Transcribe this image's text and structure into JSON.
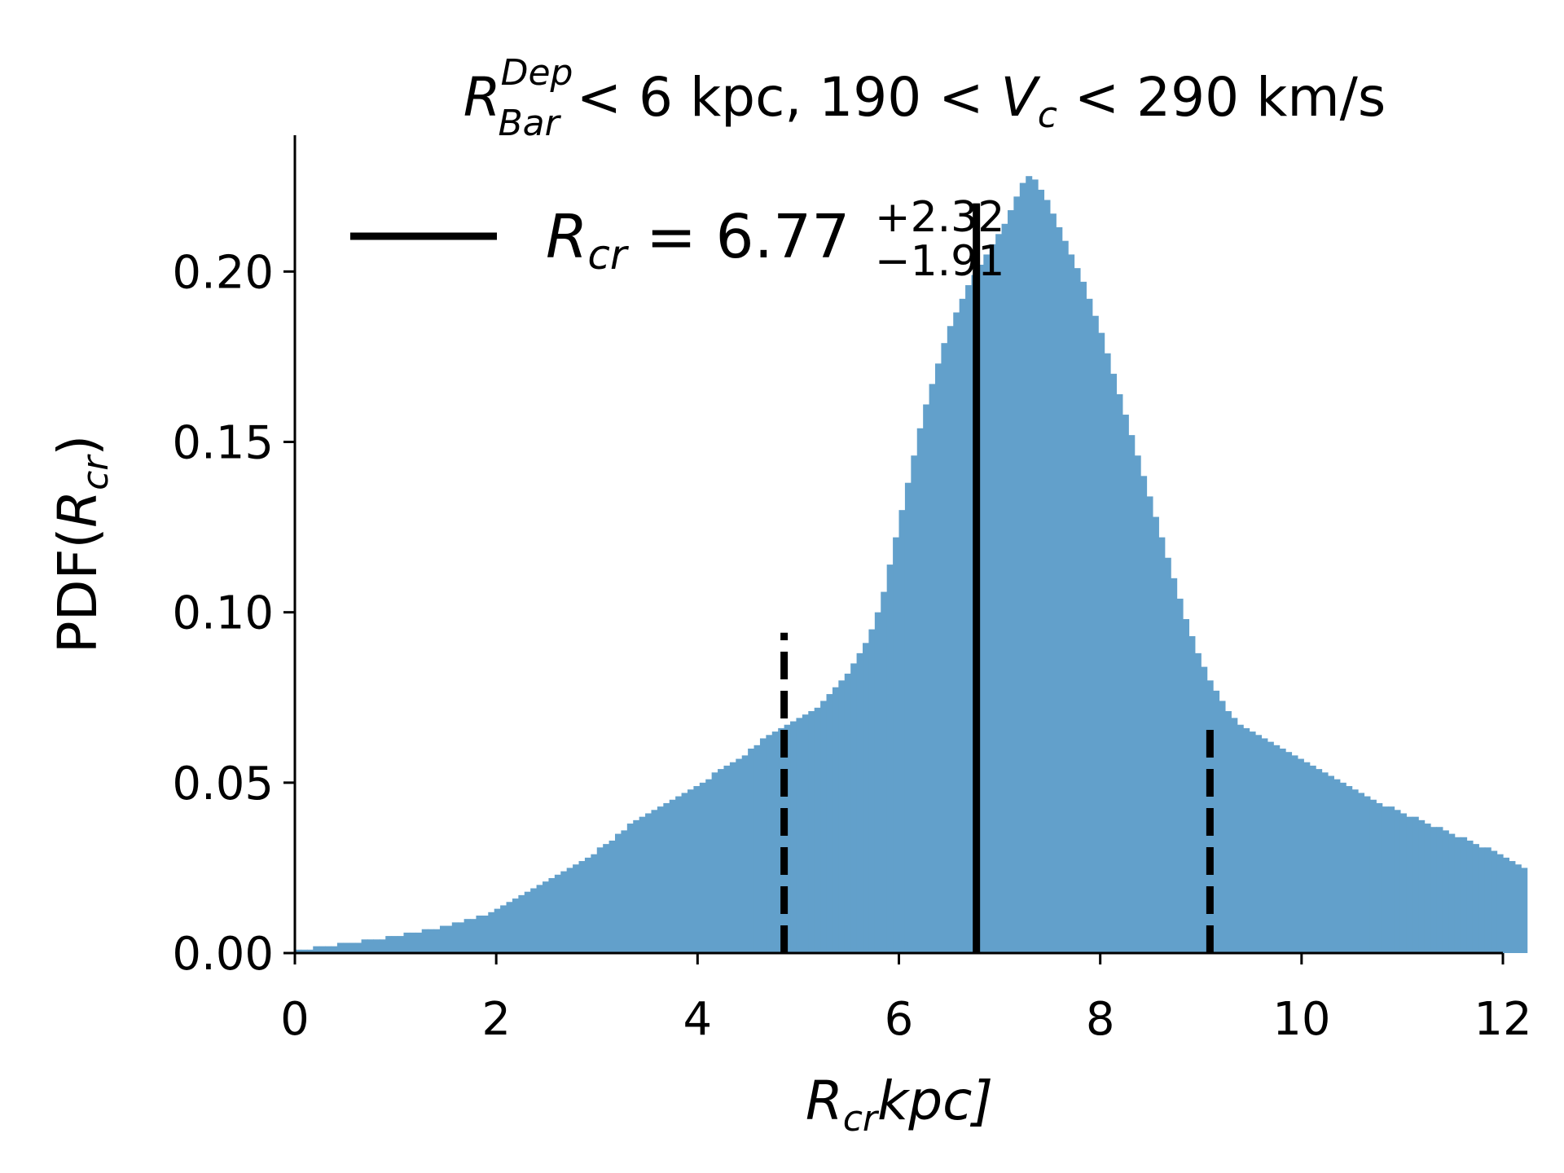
{
  "chart_data": {
    "type": "histogram",
    "title": {
      "main_symbol": "R",
      "main_sup": "Dep",
      "main_sub": "Bar",
      "main_rest": " < 6 kpc,  190 < ",
      "v_symbol": "V",
      "v_sub": "c",
      "tail": " < 290 km/s"
    },
    "xlabel": {
      "symbol": "R",
      "sub": "cr",
      "rest": "kpc]"
    },
    "ylabel": {
      "prefix": "PDF(",
      "symbol": "R",
      "sub": "cr",
      "suffix": ")"
    },
    "xlim": [
      0,
      12
    ],
    "ylim": [
      0,
      0.24
    ],
    "xticks": [
      0,
      2,
      4,
      6,
      8,
      10,
      12
    ],
    "xtick_labels": [
      "0",
      "2",
      "4",
      "6",
      "8",
      "10",
      "12"
    ],
    "yticks": [
      0.0,
      0.05,
      0.1,
      0.15,
      0.2
    ],
    "ytick_labels": [
      "0.00",
      "0.05",
      "0.10",
      "0.15",
      "0.20"
    ],
    "bar_color": "#62a0cb",
    "bin_width": 0.06,
    "values": [
      0.001,
      0.001,
      0.001,
      0.002,
      0.002,
      0.002,
      0.002,
      0.003,
      0.003,
      0.003,
      0.003,
      0.004,
      0.004,
      0.004,
      0.004,
      0.005,
      0.005,
      0.005,
      0.006,
      0.006,
      0.006,
      0.007,
      0.007,
      0.007,
      0.008,
      0.008,
      0.009,
      0.009,
      0.01,
      0.01,
      0.011,
      0.011,
      0.012,
      0.013,
      0.014,
      0.015,
      0.016,
      0.017,
      0.018,
      0.019,
      0.02,
      0.021,
      0.022,
      0.023,
      0.024,
      0.025,
      0.026,
      0.027,
      0.028,
      0.029,
      0.031,
      0.032,
      0.033,
      0.035,
      0.036,
      0.038,
      0.039,
      0.04,
      0.041,
      0.042,
      0.043,
      0.044,
      0.045,
      0.046,
      0.047,
      0.048,
      0.049,
      0.05,
      0.051,
      0.053,
      0.054,
      0.055,
      0.056,
      0.057,
      0.058,
      0.06,
      0.061,
      0.063,
      0.064,
      0.065,
      0.066,
      0.067,
      0.068,
      0.069,
      0.07,
      0.071,
      0.072,
      0.074,
      0.076,
      0.078,
      0.08,
      0.082,
      0.085,
      0.088,
      0.091,
      0.095,
      0.1,
      0.106,
      0.114,
      0.122,
      0.13,
      0.138,
      0.146,
      0.154,
      0.161,
      0.167,
      0.173,
      0.179,
      0.184,
      0.188,
      0.192,
      0.196,
      0.199,
      0.202,
      0.205,
      0.208,
      0.211,
      0.214,
      0.218,
      0.222,
      0.226,
      0.228,
      0.227,
      0.224,
      0.221,
      0.217,
      0.213,
      0.209,
      0.205,
      0.201,
      0.197,
      0.192,
      0.187,
      0.182,
      0.176,
      0.17,
      0.164,
      0.158,
      0.152,
      0.146,
      0.14,
      0.134,
      0.128,
      0.122,
      0.116,
      0.11,
      0.104,
      0.098,
      0.093,
      0.088,
      0.084,
      0.08,
      0.077,
      0.074,
      0.071,
      0.069,
      0.067,
      0.066,
      0.065,
      0.064,
      0.063,
      0.062,
      0.061,
      0.06,
      0.059,
      0.058,
      0.057,
      0.056,
      0.055,
      0.054,
      0.053,
      0.052,
      0.051,
      0.05,
      0.049,
      0.048,
      0.047,
      0.046,
      0.045,
      0.044,
      0.043,
      0.043,
      0.042,
      0.041,
      0.04,
      0.04,
      0.039,
      0.038,
      0.037,
      0.037,
      0.036,
      0.035,
      0.034,
      0.034,
      0.033,
      0.032,
      0.031,
      0.031,
      0.03,
      0.029,
      0.028,
      0.027,
      0.026,
      0.025
    ],
    "median": 6.77,
    "lower": 4.86,
    "upper": 9.09,
    "lower_top": 0.094,
    "upper_top": 0.067,
    "legend": {
      "placement": "upper-left",
      "symbol": "R",
      "sub": "cr",
      "eq": " = 6.77",
      "plus": "+2.32",
      "minus": "−1.91"
    }
  }
}
